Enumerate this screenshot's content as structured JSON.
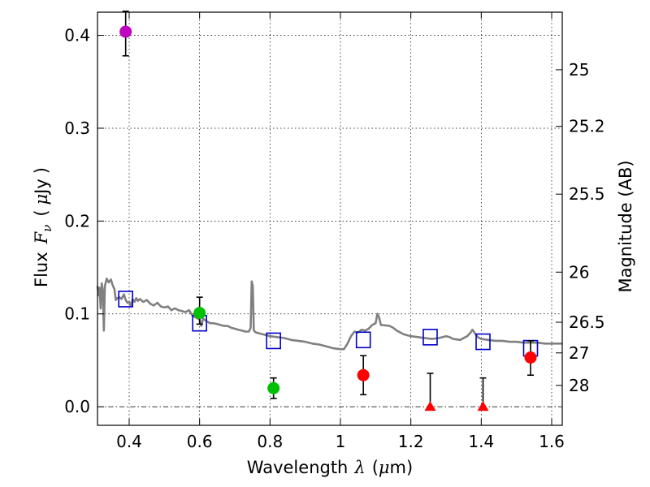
{
  "chart_data": {
    "type": "scatter",
    "xlabel_parts": [
      "Wavelength",
      "λ",
      "(",
      "μ",
      "m)"
    ],
    "ylabel_parts": [
      "Flux",
      "F",
      "ν",
      "(",
      "μ",
      "Jy",
      ")"
    ],
    "ylabel_right": "Magnitude (AB)",
    "xlim": [
      0.31,
      1.63
    ],
    "ylim": [
      -0.02,
      0.425
    ],
    "grid": true,
    "x_ticks": [
      0.4,
      0.6,
      0.8,
      1.0,
      1.2,
      1.4,
      1.6
    ],
    "x_tick_labels": [
      "0.4",
      "0.6",
      "0.8",
      "1",
      "1.2",
      "1.4",
      "1.6"
    ],
    "y_ticks": [
      0.0,
      0.1,
      0.2,
      0.3,
      0.4
    ],
    "y_tick_labels": [
      "0.0",
      "0.1",
      "0.2",
      "0.3",
      "0.4"
    ],
    "mag_ticks": [
      {
        "label": "25",
        "flux": 0.363
      },
      {
        "label": "25.2",
        "flux": 0.302
      },
      {
        "label": "25.5",
        "flux": 0.229
      },
      {
        "label": "26",
        "flux": 0.145
      },
      {
        "label": "26.5",
        "flux": 0.091
      },
      {
        "label": "27",
        "flux": 0.058
      },
      {
        "label": "28",
        "flux": 0.023
      }
    ],
    "model_spectrum": {
      "color": "#808080",
      "points": [
        [
          0.31,
          0.13
        ],
        [
          0.313,
          0.12
        ],
        [
          0.316,
          0.128
        ],
        [
          0.319,
          0.106
        ],
        [
          0.322,
          0.133
        ],
        [
          0.325,
          0.125
        ],
        [
          0.328,
          0.082
        ],
        [
          0.331,
          0.13
        ],
        [
          0.336,
          0.138
        ],
        [
          0.342,
          0.134
        ],
        [
          0.348,
          0.137
        ],
        [
          0.353,
          0.131
        ],
        [
          0.358,
          0.127
        ],
        [
          0.362,
          0.115
        ],
        [
          0.366,
          0.117
        ],
        [
          0.372,
          0.118
        ],
        [
          0.378,
          0.116
        ],
        [
          0.385,
          0.121
        ],
        [
          0.39,
          0.115
        ],
        [
          0.395,
          0.112
        ],
        [
          0.4,
          0.113
        ],
        [
          0.405,
          0.109
        ],
        [
          0.41,
          0.116
        ],
        [
          0.415,
          0.113
        ],
        [
          0.42,
          0.117
        ],
        [
          0.425,
          0.114
        ],
        [
          0.43,
          0.116
        ],
        [
          0.44,
          0.113
        ],
        [
          0.45,
          0.115
        ],
        [
          0.46,
          0.111
        ],
        [
          0.47,
          0.109
        ],
        [
          0.48,
          0.112
        ],
        [
          0.49,
          0.108
        ],
        [
          0.5,
          0.107
        ],
        [
          0.51,
          0.108
        ],
        [
          0.52,
          0.104
        ],
        [
          0.53,
          0.106
        ],
        [
          0.54,
          0.104
        ],
        [
          0.55,
          0.103
        ],
        [
          0.56,
          0.102
        ],
        [
          0.57,
          0.104
        ],
        [
          0.58,
          0.098
        ],
        [
          0.59,
          0.096
        ],
        [
          0.6,
          0.094
        ],
        [
          0.605,
          0.087
        ],
        [
          0.61,
          0.095
        ],
        [
          0.62,
          0.092
        ],
        [
          0.63,
          0.09
        ],
        [
          0.64,
          0.09
        ],
        [
          0.65,
          0.089
        ],
        [
          0.66,
          0.088
        ],
        [
          0.67,
          0.087
        ],
        [
          0.68,
          0.087
        ],
        [
          0.69,
          0.085
        ],
        [
          0.7,
          0.084
        ],
        [
          0.71,
          0.083
        ],
        [
          0.72,
          0.082
        ],
        [
          0.73,
          0.081
        ],
        [
          0.74,
          0.081
        ],
        [
          0.745,
          0.085
        ],
        [
          0.748,
          0.135
        ],
        [
          0.751,
          0.13
        ],
        [
          0.754,
          0.082
        ],
        [
          0.76,
          0.08
        ],
        [
          0.77,
          0.079
        ],
        [
          0.78,
          0.078
        ],
        [
          0.8,
          0.076
        ],
        [
          0.82,
          0.075
        ],
        [
          0.84,
          0.074
        ],
        [
          0.86,
          0.072
        ],
        [
          0.88,
          0.071
        ],
        [
          0.9,
          0.07
        ],
        [
          0.92,
          0.068
        ],
        [
          0.94,
          0.067
        ],
        [
          0.96,
          0.065
        ],
        [
          0.98,
          0.063
        ],
        [
          1.0,
          0.062
        ],
        [
          1.01,
          0.062
        ],
        [
          1.02,
          0.068
        ],
        [
          1.03,
          0.076
        ],
        [
          1.04,
          0.081
        ],
        [
          1.05,
          0.08
        ],
        [
          1.06,
          0.083
        ],
        [
          1.07,
          0.082
        ],
        [
          1.08,
          0.084
        ],
        [
          1.09,
          0.088
        ],
        [
          1.1,
          0.09
        ],
        [
          1.105,
          0.1
        ],
        [
          1.11,
          0.096
        ],
        [
          1.115,
          0.088
        ],
        [
          1.12,
          0.088
        ],
        [
          1.14,
          0.087
        ],
        [
          1.15,
          0.085
        ],
        [
          1.16,
          0.082
        ],
        [
          1.17,
          0.08
        ],
        [
          1.18,
          0.078
        ],
        [
          1.2,
          0.076
        ],
        [
          1.22,
          0.075
        ],
        [
          1.24,
          0.074
        ],
        [
          1.26,
          0.073
        ],
        [
          1.28,
          0.074
        ],
        [
          1.3,
          0.076
        ],
        [
          1.31,
          0.075
        ],
        [
          1.32,
          0.073
        ],
        [
          1.34,
          0.072
        ],
        [
          1.36,
          0.076
        ],
        [
          1.37,
          0.08
        ],
        [
          1.375,
          0.083
        ],
        [
          1.38,
          0.08
        ],
        [
          1.39,
          0.075
        ],
        [
          1.4,
          0.073
        ],
        [
          1.42,
          0.072
        ],
        [
          1.44,
          0.071
        ],
        [
          1.46,
          0.071
        ],
        [
          1.48,
          0.07
        ],
        [
          1.5,
          0.07
        ],
        [
          1.52,
          0.069
        ],
        [
          1.54,
          0.069
        ],
        [
          1.56,
          0.069
        ],
        [
          1.58,
          0.068
        ],
        [
          1.6,
          0.068
        ],
        [
          1.63,
          0.068
        ]
      ]
    },
    "model_photometry": {
      "marker": "open-square",
      "color": "#0000cc",
      "points": [
        [
          0.39,
          0.116
        ],
        [
          0.6,
          0.09
        ],
        [
          0.81,
          0.071
        ],
        [
          1.065,
          0.072
        ],
        [
          1.255,
          0.075
        ],
        [
          1.405,
          0.07
        ],
        [
          1.54,
          0.063
        ]
      ]
    },
    "observations": [
      {
        "x": 0.39,
        "y": 0.404,
        "err_low": 0.026,
        "err_high": 0.022,
        "marker": "circle",
        "color": "#bf00bf"
      },
      {
        "x": 0.6,
        "y": 0.101,
        "err_low": 0.012,
        "err_high": 0.017,
        "marker": "circle",
        "color": "#00c000"
      },
      {
        "x": 0.81,
        "y": 0.02,
        "err_low": 0.011,
        "err_high": 0.011,
        "marker": "circle",
        "color": "#00c000"
      },
      {
        "x": 1.065,
        "y": 0.034,
        "err_low": 0.021,
        "err_high": 0.021,
        "marker": "circle",
        "color": "#ff0000"
      },
      {
        "x": 1.255,
        "y": 0.0,
        "err_low": 0.0,
        "err_high": 0.036,
        "marker": "triangle",
        "color": "#ff0000"
      },
      {
        "x": 1.405,
        "y": 0.0,
        "err_low": 0.0,
        "err_high": 0.031,
        "marker": "triangle",
        "color": "#ff0000"
      },
      {
        "x": 1.54,
        "y": 0.053,
        "err_low": 0.019,
        "err_high": 0.018,
        "marker": "circle",
        "color": "#ff0000"
      }
    ]
  }
}
